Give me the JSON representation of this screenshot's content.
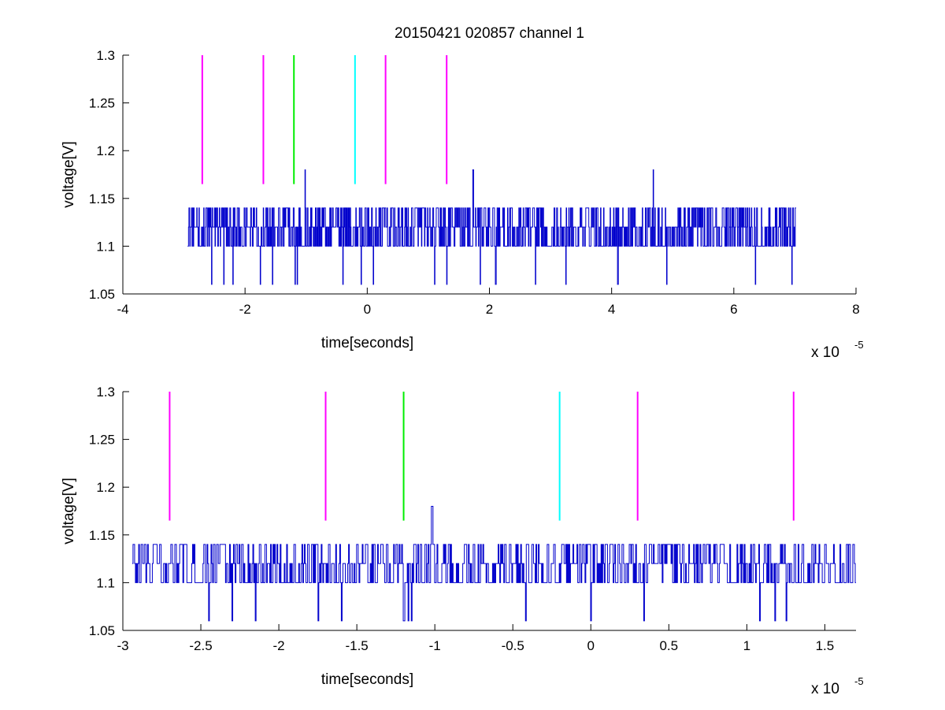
{
  "chart_data": [
    {
      "type": "line",
      "title": "20150421 020857 channel 1",
      "xlabel": "time[seconds]",
      "ylabel": "voltage[V]",
      "x_exponent_label": "x 10",
      "x_exponent_power": "-5",
      "x_scale": 1e-05,
      "xlim": [
        -4,
        8
      ],
      "ylim": [
        1.05,
        1.3
      ],
      "x_ticks": [
        -4,
        -2,
        0,
        2,
        4,
        6,
        8
      ],
      "x_tick_labels": [
        "-4",
        "-2",
        "0",
        "2",
        "4",
        "6",
        "8"
      ],
      "y_ticks": [
        1.05,
        1.1,
        1.15,
        1.2,
        1.25,
        1.3
      ],
      "y_tick_labels": [
        "1.05",
        "1.1",
        "1.15",
        "1.2",
        "1.25",
        "1.3"
      ],
      "grid": false,
      "legend": "none",
      "colors": {
        "trace": "#0000cc",
        "magenta": "#ff00ff",
        "green": "#00ee00",
        "cyan": "#00ffff"
      },
      "markers": [
        {
          "x": -2.7,
          "color": "magenta",
          "y0": 1.165,
          "y1": 1.3
        },
        {
          "x": -1.7,
          "color": "magenta",
          "y0": 1.165,
          "y1": 1.3
        },
        {
          "x": -1.2,
          "color": "green",
          "y0": 1.165,
          "y1": 1.3
        },
        {
          "x": -0.2,
          "color": "cyan",
          "y0": 1.165,
          "y1": 1.3
        },
        {
          "x": 0.3,
          "color": "magenta",
          "y0": 1.165,
          "y1": 1.3
        },
        {
          "x": 1.3,
          "color": "magenta",
          "y0": 1.165,
          "y1": 1.3
        }
      ],
      "series": [
        {
          "x_start": -2.94,
          "x_end": 7.02,
          "levels": [
            1.06,
            1.1,
            1.12,
            1.14
          ],
          "dips": [
            -2.55,
            -2.35,
            -2.2,
            -1.75,
            -1.55,
            -1.15,
            -1.18,
            -0.4,
            -0.1,
            0.1,
            1.1,
            1.3,
            1.85,
            2.1,
            2.75,
            3.25,
            4.1,
            4.9,
            6.35,
            6.95
          ],
          "spikes": [
            [
              -1.02,
              1.18
            ],
            [
              1.73,
              1.18
            ],
            [
              4.68,
              1.18
            ]
          ]
        }
      ]
    },
    {
      "type": "line",
      "title": "",
      "xlabel": "time[seconds]",
      "ylabel": "voltage[V]",
      "x_exponent_label": "x 10",
      "x_exponent_power": "-5",
      "x_scale": 1e-05,
      "xlim": [
        -3,
        1.7
      ],
      "ylim": [
        1.05,
        1.3
      ],
      "x_ticks": [
        -3,
        -2.5,
        -2,
        -1.5,
        -1,
        -0.5,
        0,
        0.5,
        1,
        1.5
      ],
      "x_tick_labels": [
        "-3",
        "-2.5",
        "-2",
        "-1.5",
        "-1",
        "-0.5",
        "0",
        "0.5",
        "1",
        "1.5"
      ],
      "y_ticks": [
        1.05,
        1.1,
        1.15,
        1.2,
        1.25,
        1.3
      ],
      "y_tick_labels": [
        "1.05",
        "1.1",
        "1.15",
        "1.2",
        "1.25",
        "1.3"
      ],
      "grid": false,
      "legend": "none",
      "colors": {
        "trace": "#0000cc",
        "magenta": "#ff00ff",
        "green": "#00ee00",
        "cyan": "#00ffff"
      },
      "markers": [
        {
          "x": -2.7,
          "color": "magenta",
          "y0": 1.165,
          "y1": 1.3
        },
        {
          "x": -1.7,
          "color": "magenta",
          "y0": 1.165,
          "y1": 1.3
        },
        {
          "x": -1.2,
          "color": "green",
          "y0": 1.165,
          "y1": 1.3
        },
        {
          "x": -0.2,
          "color": "cyan",
          "y0": 1.165,
          "y1": 1.3
        },
        {
          "x": 0.3,
          "color": "magenta",
          "y0": 1.165,
          "y1": 1.3
        },
        {
          "x": 1.3,
          "color": "magenta",
          "y0": 1.165,
          "y1": 1.3
        }
      ],
      "series": [
        {
          "x_start": -2.94,
          "x_end": 1.7,
          "levels": [
            1.06,
            1.1,
            1.12,
            1.14
          ],
          "dips": [
            -2.45,
            -2.3,
            -2.15,
            -1.75,
            -1.6,
            -1.2,
            -1.17,
            -1.15,
            -0.42,
            0.0,
            0.34,
            1.08,
            1.18,
            1.25
          ],
          "spikes": [
            [
              -1.02,
              1.18
            ]
          ]
        }
      ]
    }
  ]
}
